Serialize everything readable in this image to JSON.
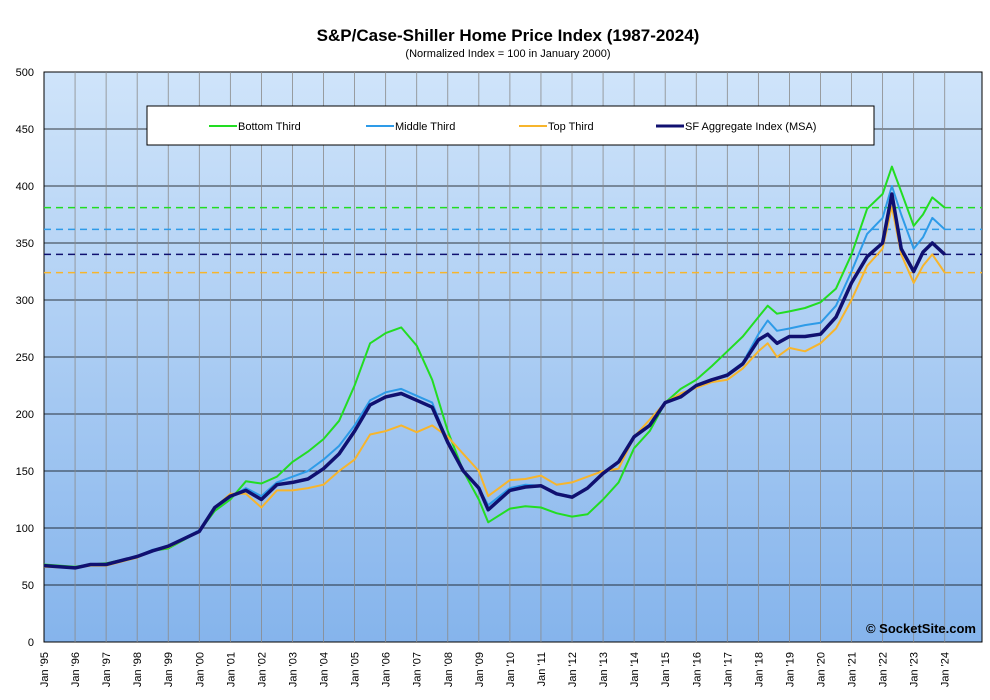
{
  "chart_data": {
    "type": "line",
    "title": "S&P/Case-Shiller Home Price Index (1987-2024)",
    "subtitle": "(Normalized Index = 100 in January 2000)",
    "xlabel": "",
    "ylabel": "",
    "ylim": [
      0,
      500
    ],
    "yticks": [
      0,
      50,
      100,
      150,
      200,
      250,
      300,
      350,
      400,
      450,
      500
    ],
    "xlim": [
      1995.0,
      2025.2
    ],
    "xtick_labels": [
      "Jan '95",
      "Jan '96",
      "Jan '97",
      "Jan '98",
      "Jan '99",
      "Jan '00",
      "Jan '01",
      "Jan '02",
      "Jan '03",
      "Jan '04",
      "Jan '05",
      "Jan '06",
      "Jan '07",
      "Jan '08",
      "Jan '09",
      "Jan '10",
      "Jan '11",
      "Jan '12",
      "Jan '13",
      "Jan '14",
      "Jan '15",
      "Jan '16",
      "Jan '17",
      "Jan '18",
      "Jan '19",
      "Jan '20",
      "Jan '21",
      "Jan '22",
      "Jan '23",
      "Jan '24"
    ],
    "grid": true,
    "legend_position": "top",
    "watermark": "© SocketSite.com",
    "series": [
      {
        "name": "Bottom Third",
        "color": "#22dd22",
        "reference_line": 381,
        "points": [
          [
            1995.0,
            68
          ],
          [
            1996.0,
            66
          ],
          [
            1996.5,
            68
          ],
          [
            1997.0,
            69
          ],
          [
            1998.0,
            75
          ],
          [
            1998.5,
            80
          ],
          [
            1999.0,
            82
          ],
          [
            2000.0,
            97
          ],
          [
            2000.5,
            115
          ],
          [
            2001.0,
            125
          ],
          [
            2001.5,
            141
          ],
          [
            2002.0,
            139
          ],
          [
            2002.5,
            145
          ],
          [
            2003.0,
            158
          ],
          [
            2003.5,
            167
          ],
          [
            2004.0,
            178
          ],
          [
            2004.5,
            194
          ],
          [
            2005.0,
            225
          ],
          [
            2005.5,
            262
          ],
          [
            2006.0,
            271
          ],
          [
            2006.5,
            276
          ],
          [
            2007.0,
            260
          ],
          [
            2007.5,
            230
          ],
          [
            2008.0,
            185
          ],
          [
            2008.5,
            150
          ],
          [
            2009.0,
            125
          ],
          [
            2009.3,
            105
          ],
          [
            2010.0,
            117
          ],
          [
            2010.5,
            119
          ],
          [
            2011.0,
            118
          ],
          [
            2011.5,
            113
          ],
          [
            2012.0,
            110
          ],
          [
            2012.5,
            112
          ],
          [
            2013.0,
            125
          ],
          [
            2013.5,
            140
          ],
          [
            2014.0,
            170
          ],
          [
            2014.5,
            185
          ],
          [
            2015.0,
            210
          ],
          [
            2015.5,
            222
          ],
          [
            2016.0,
            230
          ],
          [
            2016.5,
            242
          ],
          [
            2017.0,
            255
          ],
          [
            2017.5,
            268
          ],
          [
            2018.0,
            285
          ],
          [
            2018.3,
            295
          ],
          [
            2018.6,
            288
          ],
          [
            2019.0,
            290
          ],
          [
            2019.5,
            293
          ],
          [
            2020.0,
            298
          ],
          [
            2020.5,
            310
          ],
          [
            2021.0,
            340
          ],
          [
            2021.5,
            380
          ],
          [
            2022.0,
            393
          ],
          [
            2022.3,
            417
          ],
          [
            2022.6,
            395
          ],
          [
            2023.0,
            365
          ],
          [
            2023.3,
            375
          ],
          [
            2023.6,
            390
          ],
          [
            2024.0,
            381
          ]
        ]
      },
      {
        "name": "Middle Third",
        "color": "#2e9be8",
        "reference_line": 362,
        "points": [
          [
            1995.0,
            67
          ],
          [
            1996.0,
            65
          ],
          [
            1996.5,
            68
          ],
          [
            1997.0,
            68
          ],
          [
            1998.0,
            75
          ],
          [
            1998.5,
            81
          ],
          [
            1999.0,
            84
          ],
          [
            2000.0,
            98
          ],
          [
            2000.5,
            118
          ],
          [
            2001.0,
            127
          ],
          [
            2001.5,
            135
          ],
          [
            2002.0,
            128
          ],
          [
            2002.5,
            140
          ],
          [
            2003.0,
            145
          ],
          [
            2003.5,
            150
          ],
          [
            2004.0,
            160
          ],
          [
            2004.5,
            172
          ],
          [
            2005.0,
            190
          ],
          [
            2005.5,
            212
          ],
          [
            2006.0,
            219
          ],
          [
            2006.5,
            222
          ],
          [
            2007.0,
            216
          ],
          [
            2007.5,
            210
          ],
          [
            2008.0,
            175
          ],
          [
            2008.5,
            150
          ],
          [
            2009.0,
            135
          ],
          [
            2009.3,
            120
          ],
          [
            2010.0,
            135
          ],
          [
            2010.5,
            138
          ],
          [
            2011.0,
            137
          ],
          [
            2011.5,
            130
          ],
          [
            2012.0,
            128
          ],
          [
            2012.5,
            135
          ],
          [
            2013.0,
            148
          ],
          [
            2013.5,
            158
          ],
          [
            2014.0,
            180
          ],
          [
            2014.5,
            190
          ],
          [
            2015.0,
            210
          ],
          [
            2015.5,
            216
          ],
          [
            2016.0,
            225
          ],
          [
            2016.5,
            230
          ],
          [
            2017.0,
            235
          ],
          [
            2017.5,
            245
          ],
          [
            2018.0,
            270
          ],
          [
            2018.3,
            282
          ],
          [
            2018.6,
            273
          ],
          [
            2019.0,
            275
          ],
          [
            2019.5,
            278
          ],
          [
            2020.0,
            280
          ],
          [
            2020.5,
            295
          ],
          [
            2021.0,
            325
          ],
          [
            2021.5,
            358
          ],
          [
            2022.0,
            372
          ],
          [
            2022.3,
            400
          ],
          [
            2022.6,
            375
          ],
          [
            2023.0,
            345
          ],
          [
            2023.3,
            355
          ],
          [
            2023.6,
            372
          ],
          [
            2024.0,
            362
          ]
        ]
      },
      {
        "name": "Top Third",
        "color": "#f7b52c",
        "reference_line": 324,
        "points": [
          [
            1995.0,
            66
          ],
          [
            1996.0,
            65
          ],
          [
            1996.5,
            67
          ],
          [
            1997.0,
            67
          ],
          [
            1998.0,
            74
          ],
          [
            1998.5,
            80
          ],
          [
            1999.0,
            83
          ],
          [
            2000.0,
            97
          ],
          [
            2000.5,
            118
          ],
          [
            2001.0,
            130
          ],
          [
            2001.5,
            130
          ],
          [
            2002.0,
            118
          ],
          [
            2002.5,
            133
          ],
          [
            2003.0,
            133
          ],
          [
            2003.5,
            135
          ],
          [
            2004.0,
            138
          ],
          [
            2004.5,
            150
          ],
          [
            2005.0,
            160
          ],
          [
            2005.5,
            182
          ],
          [
            2006.0,
            185
          ],
          [
            2006.5,
            190
          ],
          [
            2007.0,
            184
          ],
          [
            2007.5,
            190
          ],
          [
            2008.0,
            180
          ],
          [
            2008.5,
            165
          ],
          [
            2009.0,
            150
          ],
          [
            2009.3,
            128
          ],
          [
            2010.0,
            142
          ],
          [
            2010.5,
            143
          ],
          [
            2011.0,
            146
          ],
          [
            2011.5,
            138
          ],
          [
            2012.0,
            140
          ],
          [
            2012.5,
            145
          ],
          [
            2013.0,
            150
          ],
          [
            2013.5,
            152
          ],
          [
            2014.0,
            180
          ],
          [
            2014.5,
            195
          ],
          [
            2015.0,
            210
          ],
          [
            2015.5,
            218
          ],
          [
            2016.0,
            223
          ],
          [
            2016.5,
            228
          ],
          [
            2017.0,
            230
          ],
          [
            2017.5,
            240
          ],
          [
            2018.0,
            255
          ],
          [
            2018.3,
            262
          ],
          [
            2018.6,
            250
          ],
          [
            2019.0,
            258
          ],
          [
            2019.5,
            255
          ],
          [
            2020.0,
            262
          ],
          [
            2020.5,
            275
          ],
          [
            2021.0,
            300
          ],
          [
            2021.5,
            330
          ],
          [
            2022.0,
            345
          ],
          [
            2022.3,
            382
          ],
          [
            2022.6,
            340
          ],
          [
            2023.0,
            315
          ],
          [
            2023.3,
            330
          ],
          [
            2023.6,
            340
          ],
          [
            2024.0,
            324
          ]
        ]
      },
      {
        "name": "SF Aggregate Index (MSA)",
        "color": "#101070",
        "reference_line": 340,
        "points": [
          [
            1995.0,
            67
          ],
          [
            1996.0,
            65
          ],
          [
            1996.5,
            68
          ],
          [
            1997.0,
            68
          ],
          [
            1998.0,
            75
          ],
          [
            1998.5,
            80
          ],
          [
            1999.0,
            84
          ],
          [
            2000.0,
            97
          ],
          [
            2000.5,
            118
          ],
          [
            2001.0,
            128
          ],
          [
            2001.5,
            133
          ],
          [
            2002.0,
            125
          ],
          [
            2002.5,
            138
          ],
          [
            2003.0,
            140
          ],
          [
            2003.5,
            143
          ],
          [
            2004.0,
            152
          ],
          [
            2004.5,
            165
          ],
          [
            2005.0,
            185
          ],
          [
            2005.5,
            208
          ],
          [
            2006.0,
            215
          ],
          [
            2006.5,
            218
          ],
          [
            2007.0,
            212
          ],
          [
            2007.5,
            206
          ],
          [
            2008.0,
            175
          ],
          [
            2008.5,
            150
          ],
          [
            2009.0,
            135
          ],
          [
            2009.3,
            116
          ],
          [
            2010.0,
            133
          ],
          [
            2010.5,
            136
          ],
          [
            2011.0,
            137
          ],
          [
            2011.5,
            130
          ],
          [
            2012.0,
            127
          ],
          [
            2012.5,
            135
          ],
          [
            2013.0,
            148
          ],
          [
            2013.5,
            158
          ],
          [
            2014.0,
            180
          ],
          [
            2014.5,
            190
          ],
          [
            2015.0,
            210
          ],
          [
            2015.5,
            215
          ],
          [
            2016.0,
            225
          ],
          [
            2016.5,
            230
          ],
          [
            2017.0,
            234
          ],
          [
            2017.5,
            244
          ],
          [
            2018.0,
            265
          ],
          [
            2018.3,
            270
          ],
          [
            2018.6,
            262
          ],
          [
            2019.0,
            268
          ],
          [
            2019.5,
            268
          ],
          [
            2020.0,
            270
          ],
          [
            2020.5,
            285
          ],
          [
            2021.0,
            315
          ],
          [
            2021.5,
            338
          ],
          [
            2022.0,
            350
          ],
          [
            2022.3,
            393
          ],
          [
            2022.6,
            345
          ],
          [
            2023.0,
            325
          ],
          [
            2023.3,
            342
          ],
          [
            2023.6,
            350
          ],
          [
            2024.0,
            340
          ]
        ]
      }
    ]
  }
}
